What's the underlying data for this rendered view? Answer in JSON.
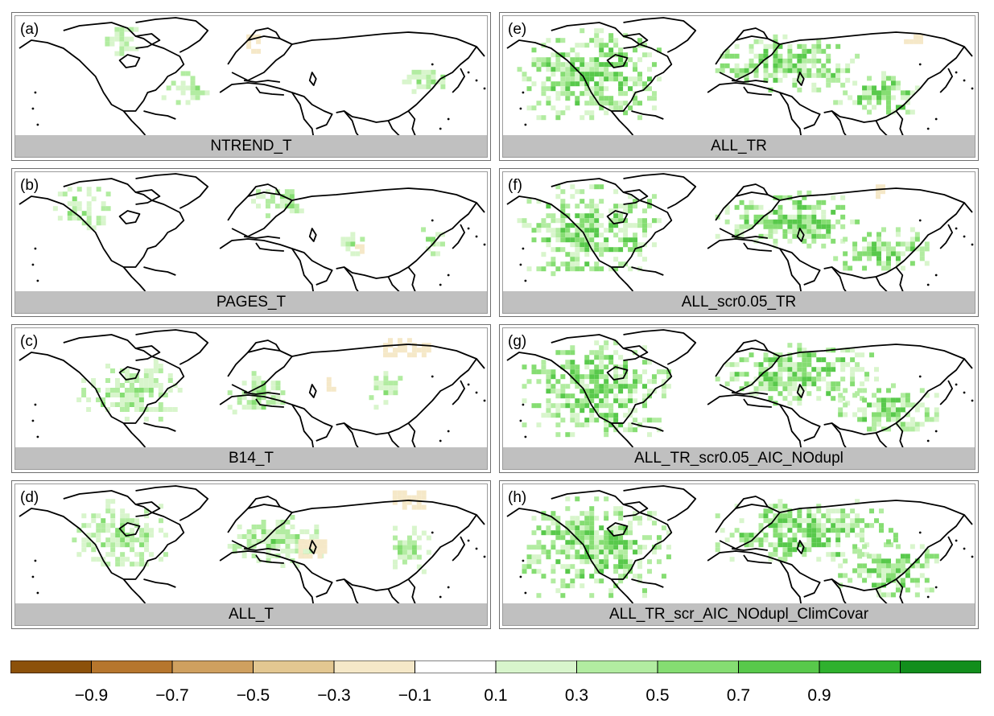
{
  "panels": [
    {
      "letter": "(a)",
      "title": "NTREND_T",
      "pattern": [
        [
          0.18,
          0.05,
          0.08,
          0.25
        ],
        [
          0.31,
          0.45,
          0.1,
          0.25
        ],
        [
          0.82,
          0.4,
          0.1,
          0.2
        ]
      ],
      "brown": [
        [
          0.49,
          0.15,
          0.03,
          0.12
        ]
      ]
    },
    {
      "letter": "(b)",
      "title": "PAGES_T",
      "pattern": [
        [
          0.08,
          0.12,
          0.12,
          0.35
        ],
        [
          0.5,
          0.1,
          0.12,
          0.25
        ],
        [
          0.68,
          0.45,
          0.06,
          0.2
        ],
        [
          0.85,
          0.45,
          0.06,
          0.2
        ]
      ],
      "brown": [
        [
          0.72,
          0.55,
          0.02,
          0.08
        ]
      ]
    },
    {
      "letter": "(c)",
      "title": "B14_T",
      "pattern": [
        [
          0.13,
          0.25,
          0.22,
          0.5
        ],
        [
          0.45,
          0.35,
          0.12,
          0.35
        ],
        [
          0.75,
          0.35,
          0.07,
          0.3
        ]
      ],
      "brown": [
        [
          0.78,
          0.08,
          0.1,
          0.12
        ],
        [
          0.66,
          0.4,
          0.02,
          0.08
        ]
      ]
    },
    {
      "letter": "(d)",
      "title": "ALL_T",
      "pattern": [
        [
          0.12,
          0.12,
          0.2,
          0.55
        ],
        [
          0.45,
          0.25,
          0.2,
          0.4
        ],
        [
          0.78,
          0.3,
          0.1,
          0.4
        ]
      ],
      "brown": [
        [
          0.6,
          0.45,
          0.06,
          0.12
        ],
        [
          0.8,
          0.05,
          0.07,
          0.15
        ]
      ]
    },
    {
      "letter": "(e)",
      "title": "ALL_TR",
      "pattern": [
        [
          0.03,
          0.1,
          0.3,
          0.75
        ],
        [
          0.45,
          0.15,
          0.3,
          0.45
        ],
        [
          0.7,
          0.45,
          0.2,
          0.35
        ]
      ],
      "brown": [
        [
          0.85,
          0.15,
          0.04,
          0.1
        ]
      ]
    },
    {
      "letter": "(f)",
      "title": "ALL_scr0.05_TR",
      "pattern": [
        [
          0.03,
          0.1,
          0.3,
          0.75
        ],
        [
          0.45,
          0.15,
          0.3,
          0.45
        ],
        [
          0.7,
          0.45,
          0.2,
          0.35
        ]
      ],
      "brown": [
        [
          0.78,
          0.1,
          0.03,
          0.08
        ]
      ]
    },
    {
      "letter": "(g)",
      "title": "ALL_TR_scr0.05_AIC_NOdupl",
      "pattern": [
        [
          0.03,
          0.1,
          0.32,
          0.78
        ],
        [
          0.45,
          0.12,
          0.35,
          0.5
        ],
        [
          0.7,
          0.45,
          0.22,
          0.4
        ]
      ],
      "brown": []
    },
    {
      "letter": "(h)",
      "title": "ALL_TR_scr_AIC_NOdupl_ClimCovar",
      "pattern": [
        [
          0.03,
          0.1,
          0.32,
          0.8
        ],
        [
          0.45,
          0.12,
          0.38,
          0.5
        ],
        [
          0.7,
          0.45,
          0.22,
          0.45
        ]
      ],
      "brown": []
    }
  ],
  "colorbar": {
    "colors": [
      "#8c510a",
      "#b6762d",
      "#cfa05f",
      "#e3c791",
      "#f5e8c8",
      "#ffffff",
      "#d8f5cc",
      "#b2eca1",
      "#85dd72",
      "#58c94b",
      "#2fb12e",
      "#128e1c"
    ],
    "labels": [
      "−0.9",
      "−0.7",
      "−0.5",
      "−0.3",
      "−0.1",
      "0.1",
      "0.3",
      "0.5",
      "0.7",
      "0.9"
    ]
  }
}
